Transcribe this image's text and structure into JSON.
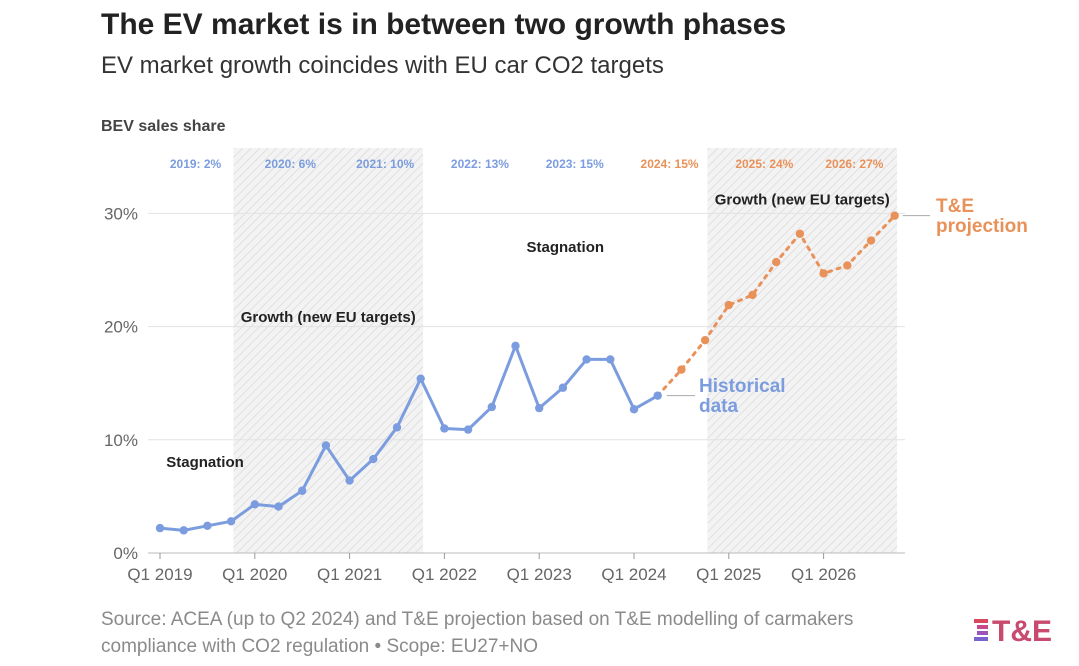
{
  "title": "The EV market is in between two growth phases",
  "subtitle": "EV market growth coincides with EU car CO2 targets",
  "source_line1": "Source: ACEA (up to Q2 2024) and T&E projection based on T&E modelling of carmakers",
  "source_line2": "compliance with CO2 regulation • Scope: EU27+NO",
  "logo_text": "T&E",
  "colors": {
    "historical": "#7B9CDE",
    "projection": "#E8925A",
    "text": "#222222",
    "grid": "#E2E2E2",
    "muted": "#8A8A8A"
  },
  "chart_data": {
    "type": "line",
    "ylabel": "BEV sales share",
    "ylim": [
      0,
      35
    ],
    "yticks": [
      0,
      10,
      20,
      30
    ],
    "ytick_labels": [
      "0%",
      "10%",
      "20%",
      "30%"
    ],
    "xticks": [
      0,
      4,
      8,
      12,
      16,
      20,
      24,
      28
    ],
    "xtick_labels": [
      "Q1 2019",
      "Q1 2020",
      "Q1 2021",
      "Q1 2022",
      "Q1 2023",
      "Q1 2024",
      "Q1 2025",
      "Q1 2026"
    ],
    "year_labels": [
      {
        "x": 1.5,
        "text": "2019: 2%",
        "series": "historical"
      },
      {
        "x": 5.5,
        "text": "2020: 6%",
        "series": "historical"
      },
      {
        "x": 9.5,
        "text": "2021: 10%",
        "series": "historical"
      },
      {
        "x": 13.5,
        "text": "2022: 13%",
        "series": "historical"
      },
      {
        "x": 17.5,
        "text": "2023: 15%",
        "series": "historical"
      },
      {
        "x": 21.5,
        "text": "2024: 15%",
        "series": "projection"
      },
      {
        "x": 25.5,
        "text": "2025: 24%",
        "series": "projection"
      },
      {
        "x": 29.3,
        "text": "2026: 27%",
        "series": "projection"
      }
    ],
    "shaded_ranges": [
      [
        3.1,
        11.1
      ],
      [
        23.1,
        31.1
      ]
    ],
    "annotations": [
      {
        "x": 1.9,
        "y": 7.6,
        "text": "Stagnation"
      },
      {
        "x": 7.1,
        "y": 20.4,
        "text": "Growth (new EU targets)"
      },
      {
        "x": 17.1,
        "y": 26.6,
        "text": "Stagnation"
      },
      {
        "x": 27.1,
        "y": 30.8,
        "text": "Growth (new EU targets)"
      }
    ],
    "series": [
      {
        "name": "Historical data",
        "name_lines": [
          "Historical",
          "data"
        ],
        "style": "solid",
        "x": [
          0,
          1,
          2,
          3,
          4,
          5,
          6,
          7,
          8,
          9,
          10,
          11,
          12,
          13,
          14,
          15,
          16,
          17,
          18,
          19,
          20,
          21
        ],
        "values": [
          2.2,
          2.0,
          2.4,
          2.8,
          4.3,
          4.1,
          5.5,
          9.5,
          6.4,
          8.3,
          11.1,
          15.4,
          11.0,
          10.9,
          12.9,
          18.3,
          12.8,
          14.6,
          17.1,
          17.1,
          12.7,
          13.9
        ]
      },
      {
        "name": "T&E projection",
        "name_lines": [
          "T&E",
          "projection"
        ],
        "style": "dotted",
        "x": [
          21,
          22,
          23,
          24,
          25,
          26,
          27,
          28,
          29,
          30,
          31
        ],
        "values": [
          13.9,
          16.2,
          18.8,
          21.9,
          22.8,
          25.7,
          28.2,
          24.7,
          25.4,
          27.6,
          29.8
        ]
      }
    ]
  }
}
